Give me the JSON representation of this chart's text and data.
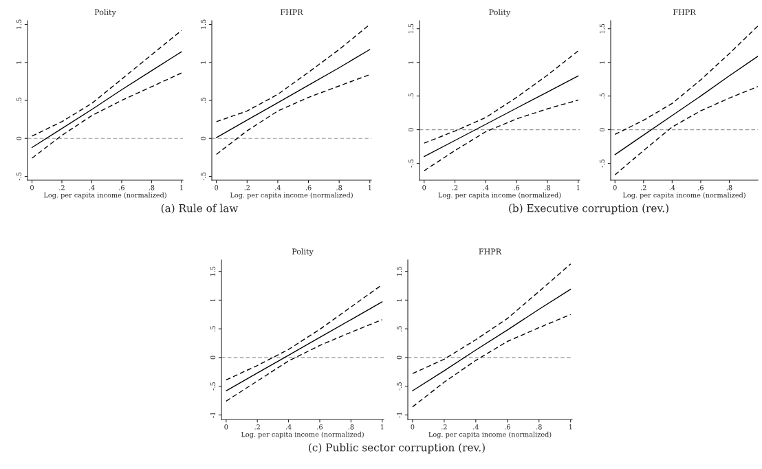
{
  "chart_data": [
    {
      "type": "line",
      "title": "Polity",
      "xlabel": "Log. per capita income (normalized)",
      "annotations": [
        "(a) Rule of law"
      ],
      "xlim": [
        -0.03,
        1.01
      ],
      "ylim": [
        -0.55,
        1.55
      ],
      "xticks": [
        0,
        {
          "value": 0.2,
          "label": ".2"
        },
        {
          "value": 0.4,
          "label": ".4"
        },
        {
          "value": 0.6,
          "label": ".6"
        },
        {
          "value": 0.8,
          "label": ".8"
        },
        1
      ],
      "yticks": [
        {
          "value": -0.5,
          "label": "-.5"
        },
        0,
        {
          "value": 0.5,
          "label": ".5"
        },
        1,
        {
          "value": 1.5,
          "label": "1.5"
        }
      ],
      "grid": false,
      "ref_lines": [
        {
          "axis": "y",
          "value": 0,
          "color": "#999999",
          "line_style": "dashed"
        }
      ],
      "x": [
        0,
        0.2,
        0.4,
        0.6,
        0.8,
        1
      ],
      "series": [
        {
          "color": "#000000",
          "line_style": "solid",
          "values": [
            -0.12,
            0.13,
            0.38,
            0.64,
            0.89,
            1.14
          ]
        },
        {
          "color": "#000000",
          "line_style": "dashed",
          "values": [
            0.03,
            0.22,
            0.46,
            0.78,
            1.1,
            1.42
          ]
        },
        {
          "color": "#000000",
          "line_style": "dashed",
          "values": [
            -0.26,
            0.04,
            0.3,
            0.5,
            0.68,
            0.86
          ]
        }
      ]
    },
    {
      "type": "line",
      "title": "FHPR",
      "xlabel": "Log. per capita income (normalized)",
      "xlim": [
        -0.03,
        1.01
      ],
      "ylim": [
        -0.55,
        1.55
      ],
      "xticks": [
        0,
        {
          "value": 0.2,
          "label": ".2"
        },
        {
          "value": 0.4,
          "label": ".4"
        },
        {
          "value": 0.6,
          "label": ".6"
        },
        {
          "value": 0.8,
          "label": ".8"
        },
        1
      ],
      "yticks": [
        {
          "value": -0.5,
          "label": "-.5"
        },
        0,
        {
          "value": 0.5,
          "label": ".5"
        },
        1,
        {
          "value": 1.5,
          "label": "1.5"
        }
      ],
      "grid": false,
      "ref_lines": [
        {
          "axis": "y",
          "value": 0,
          "color": "#999999",
          "line_style": "dashed"
        }
      ],
      "x": [
        0,
        0.2,
        0.4,
        0.6,
        0.8,
        1
      ],
      "series": [
        {
          "color": "#000000",
          "line_style": "solid",
          "values": [
            0.01,
            0.24,
            0.47,
            0.7,
            0.93,
            1.17
          ]
        },
        {
          "color": "#000000",
          "line_style": "dashed",
          "values": [
            0.22,
            0.36,
            0.58,
            0.87,
            1.17,
            1.5
          ]
        },
        {
          "color": "#000000",
          "line_style": "dashed",
          "values": [
            -0.21,
            0.1,
            0.36,
            0.54,
            0.69,
            0.84
          ]
        }
      ]
    },
    {
      "type": "line",
      "title": "Polity",
      "xlabel": "Log. per capita income (normalized)",
      "annotations": [
        "(b) Executive corruption (rev.)"
      ],
      "xlim": [
        -0.03,
        1.01
      ],
      "ylim": [
        -0.75,
        1.62
      ],
      "xticks": [
        0,
        {
          "value": 0.2,
          "label": ".2"
        },
        {
          "value": 0.4,
          "label": ".4"
        },
        {
          "value": 0.6,
          "label": ".6"
        },
        {
          "value": 0.8,
          "label": ".8"
        },
        1
      ],
      "yticks": [
        {
          "value": -0.5,
          "label": "-.5"
        },
        0,
        {
          "value": 0.5,
          "label": ".5"
        },
        1,
        {
          "value": 1.5,
          "label": "1.5"
        }
      ],
      "grid": false,
      "ref_lines": [
        {
          "axis": "y",
          "value": 0,
          "color": "#999999",
          "line_style": "dashed"
        }
      ],
      "x": [
        0,
        0.2,
        0.4,
        0.6,
        0.8,
        1
      ],
      "series": [
        {
          "color": "#000000",
          "line_style": "solid",
          "values": [
            -0.4,
            -0.16,
            0.08,
            0.32,
            0.56,
            0.8
          ]
        },
        {
          "color": "#000000",
          "line_style": "dashed",
          "values": [
            -0.2,
            -0.02,
            0.18,
            0.48,
            0.81,
            1.17
          ]
        },
        {
          "color": "#000000",
          "line_style": "dashed",
          "values": [
            -0.61,
            -0.31,
            -0.03,
            0.16,
            0.31,
            0.44
          ]
        }
      ]
    },
    {
      "type": "line",
      "title": "FHPR",
      "xlabel": "Log. per capita income (normalized)",
      "xlim": [
        -0.03,
        1.0
      ],
      "ylim": [
        -0.75,
        1.62
      ],
      "xticks": [
        0,
        {
          "value": 0.2,
          "label": ".2"
        },
        {
          "value": 0.4,
          "label": ".4"
        },
        {
          "value": 0.6,
          "label": ".6"
        },
        {
          "value": 0.8,
          "label": ".8"
        }
      ],
      "yticks": [
        {
          "value": -0.5,
          "label": "-.5"
        },
        0,
        {
          "value": 0.5,
          "label": ".5"
        },
        1,
        {
          "value": 1.5,
          "label": "1.5"
        }
      ],
      "grid": false,
      "ref_lines": [
        {
          "axis": "y",
          "value": 0,
          "color": "#999999",
          "line_style": "dashed"
        }
      ],
      "x": [
        0,
        0.2,
        0.4,
        0.6,
        0.8,
        1
      ],
      "series": [
        {
          "color": "#000000",
          "line_style": "solid",
          "values": [
            -0.37,
            -0.08,
            0.21,
            0.5,
            0.8,
            1.09
          ]
        },
        {
          "color": "#000000",
          "line_style": "dashed",
          "values": [
            -0.07,
            0.14,
            0.39,
            0.74,
            1.13,
            1.54
          ]
        },
        {
          "color": "#000000",
          "line_style": "dashed",
          "values": [
            -0.67,
            -0.31,
            0.04,
            0.28,
            0.47,
            0.64
          ]
        }
      ]
    },
    {
      "type": "line",
      "title": "Polity",
      "xlabel": "Log. per capita income (normalized)",
      "annotations": [
        "(c) Public sector corruption (rev.)"
      ],
      "xlim": [
        -0.03,
        1.01
      ],
      "ylim": [
        -1.08,
        1.7
      ],
      "xticks": [
        0,
        {
          "value": 0.2,
          "label": ".2"
        },
        {
          "value": 0.4,
          "label": ".4"
        },
        {
          "value": 0.6,
          "label": ".6"
        },
        {
          "value": 0.8,
          "label": ".8"
        },
        1
      ],
      "yticks": [
        {
          "value": -1,
          "label": "-1"
        },
        {
          "value": -0.5,
          "label": "-.5"
        },
        0,
        {
          "value": 0.5,
          "label": ".5"
        },
        1,
        {
          "value": 1.5,
          "label": "1.5"
        }
      ],
      "grid": false,
      "ref_lines": [
        {
          "axis": "y",
          "value": 0,
          "color": "#999999",
          "line_style": "dashed"
        }
      ],
      "x": [
        0,
        0.2,
        0.4,
        0.6,
        0.8,
        1
      ],
      "series": [
        {
          "color": "#000000",
          "line_style": "solid",
          "values": [
            -0.58,
            -0.27,
            0.04,
            0.35,
            0.66,
            0.97
          ]
        },
        {
          "color": "#000000",
          "line_style": "dashed",
          "values": [
            -0.39,
            -0.14,
            0.14,
            0.49,
            0.88,
            1.27
          ]
        },
        {
          "color": "#000000",
          "line_style": "dashed",
          "values": [
            -0.76,
            -0.41,
            -0.06,
            0.21,
            0.44,
            0.66
          ]
        }
      ]
    },
    {
      "type": "line",
      "title": "FHPR",
      "xlabel": "Log. per capita income (normalized)",
      "xlim": [
        -0.03,
        1.01
      ],
      "ylim": [
        -1.08,
        1.7
      ],
      "xticks": [
        0,
        {
          "value": 0.2,
          "label": ".2"
        },
        {
          "value": 0.4,
          "label": ".4"
        },
        {
          "value": 0.6,
          "label": ".6"
        },
        {
          "value": 0.8,
          "label": ".8"
        },
        1
      ],
      "yticks": [
        {
          "value": -1,
          "label": "-1"
        },
        {
          "value": -0.5,
          "label": "-.5"
        },
        0,
        {
          "value": 0.5,
          "label": ".5"
        },
        1,
        {
          "value": 1.5,
          "label": "1.5"
        }
      ],
      "grid": false,
      "ref_lines": [
        {
          "axis": "y",
          "value": 0,
          "color": "#999999",
          "line_style": "dashed"
        }
      ],
      "x": [
        0,
        0.2,
        0.4,
        0.6,
        0.8,
        1
      ],
      "series": [
        {
          "color": "#000000",
          "line_style": "solid",
          "values": [
            -0.58,
            -0.23,
            0.13,
            0.48,
            0.84,
            1.19
          ]
        },
        {
          "color": "#000000",
          "line_style": "dashed",
          "values": [
            -0.28,
            -0.03,
            0.31,
            0.68,
            1.15,
            1.63
          ]
        },
        {
          "color": "#000000",
          "line_style": "dashed",
          "values": [
            -0.86,
            -0.43,
            -0.05,
            0.28,
            0.52,
            0.75
          ]
        }
      ]
    }
  ]
}
